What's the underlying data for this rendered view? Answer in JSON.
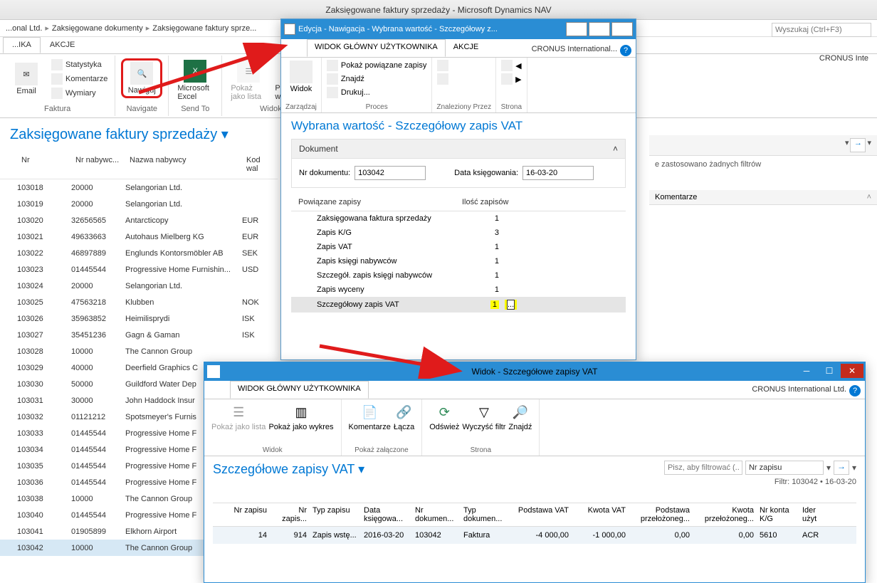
{
  "colors": {
    "accent": "#0078d4",
    "titlebar": "#2a8dd4",
    "highlight": "#ffff00",
    "red": "#e01b1b",
    "closeRed": "#c42b1c"
  },
  "main": {
    "title": "Zaksięgowane faktury sprzedaży - Microsoft Dynamics NAV",
    "breadcrumb": [
      "...onal Ltd.",
      "Zaksięgowane dokumenty",
      "Zaksięgowane faktury sprze..."
    ],
    "searchPlaceholder": "Wyszukaj (Ctrl+F3)",
    "cronus": "CRONUS Inte",
    "ribbonTabs": [
      "...IKA",
      "AKCJE"
    ],
    "ribbon": {
      "faktura": {
        "label": "Faktura",
        "email": "Email",
        "statystyka": "Statystyka",
        "komentarze": "Komentarze",
        "wymiary": "Wymiary"
      },
      "navigate": {
        "label": "Navigate",
        "nawiguj": "Nawiguj"
      },
      "sendto": {
        "label": "Send To",
        "excel": "Microsoft Excel"
      },
      "widok": {
        "label": "Widok",
        "pokazlista": "Pokaż jako lista",
        "pokazwykres": "Pokaż jak wykres"
      }
    },
    "listTitle": "Zaksięgowane faktury sprzedaży ▾",
    "columns": {
      "nr": "Nr",
      "nrNabywcy": "Nr nabywc...",
      "nazwa": "Nazwa nabywcy",
      "kod": "Kod wal"
    },
    "rows": [
      {
        "nr": "103018",
        "cust": "20000",
        "name": "Selangorian Ltd.",
        "cur": ""
      },
      {
        "nr": "103019",
        "cust": "20000",
        "name": "Selangorian Ltd.",
        "cur": ""
      },
      {
        "nr": "103020",
        "cust": "32656565",
        "name": "Antarcticopy",
        "cur": "EUR"
      },
      {
        "nr": "103021",
        "cust": "49633663",
        "name": "Autohaus Mielberg KG",
        "cur": "EUR"
      },
      {
        "nr": "103022",
        "cust": "46897889",
        "name": "Englunds Kontorsmöbler AB",
        "cur": "SEK"
      },
      {
        "nr": "103023",
        "cust": "01445544",
        "name": "Progressive Home Furnishin...",
        "cur": "USD"
      },
      {
        "nr": "103024",
        "cust": "20000",
        "name": "Selangorian Ltd.",
        "cur": ""
      },
      {
        "nr": "103025",
        "cust": "47563218",
        "name": "Klubben",
        "cur": "NOK"
      },
      {
        "nr": "103026",
        "cust": "35963852",
        "name": "Heimilisprydi",
        "cur": "ISK"
      },
      {
        "nr": "103027",
        "cust": "35451236",
        "name": "Gagn & Gaman",
        "cur": "ISK"
      },
      {
        "nr": "103028",
        "cust": "10000",
        "name": "The Cannon Group",
        "cur": ""
      },
      {
        "nr": "103029",
        "cust": "40000",
        "name": "Deerfield Graphics C",
        "cur": ""
      },
      {
        "nr": "103030",
        "cust": "50000",
        "name": "Guildford Water Dep",
        "cur": ""
      },
      {
        "nr": "103031",
        "cust": "30000",
        "name": "John Haddock Insur",
        "cur": ""
      },
      {
        "nr": "103032",
        "cust": "01121212",
        "name": "Spotsmeyer's Furnis",
        "cur": ""
      },
      {
        "nr": "103033",
        "cust": "01445544",
        "name": "Progressive Home F",
        "cur": ""
      },
      {
        "nr": "103034",
        "cust": "01445544",
        "name": "Progressive Home F",
        "cur": ""
      },
      {
        "nr": "103035",
        "cust": "01445544",
        "name": "Progressive Home F",
        "cur": ""
      },
      {
        "nr": "103036",
        "cust": "01445544",
        "name": "Progressive Home F",
        "cur": ""
      },
      {
        "nr": "103038",
        "cust": "10000",
        "name": "The Cannon Group",
        "cur": ""
      },
      {
        "nr": "103040",
        "cust": "01445544",
        "name": "Progressive Home F",
        "cur": ""
      },
      {
        "nr": "103041",
        "cust": "01905899",
        "name": "Elkhorn Airport",
        "cur": ""
      },
      {
        "nr": "103042",
        "cust": "10000",
        "name": "The Cannon Group",
        "cur": ""
      }
    ],
    "rightFilterInfo": "e zastosowano żadnych filtrów",
    "komentarzeHdr": "Komentarze"
  },
  "navdlg": {
    "title": "Edycja - Nawigacja - Wybrana wartość - Szczegółowy z...",
    "tabs": [
      "WIDOK GŁÓWNY UŻYTKOWNIKA",
      "AKCJE"
    ],
    "cronus": "CRONUS International...",
    "ribbon": {
      "zarzadzaj": {
        "label": "Zarządzaj",
        "widok": "Widok"
      },
      "proces": {
        "label": "Proces",
        "pokazPowiazane": "Pokaż powiązane zapisy",
        "znajdz": "Znajdź",
        "drukuj": "Drukuj..."
      },
      "znaleziony": {
        "label": "Znaleziony Przez"
      },
      "strona": {
        "label": "Strona"
      }
    },
    "heading": "Wybrana wartość - Szczegółowy zapis VAT",
    "fastTab": "Dokument",
    "fields": {
      "nrDok": "Nr dokumentu:",
      "nrDokVal": "103042",
      "dataKs": "Data księgowania:",
      "dataKsVal": "16-03-20"
    },
    "relatedHdr": {
      "name": "Powiązane zapisy",
      "count": "Ilość zapisów"
    },
    "related": [
      {
        "name": "Zaksięgowana faktura sprzedaży",
        "count": "1"
      },
      {
        "name": "Zapis K/G",
        "count": "3"
      },
      {
        "name": "Zapis VAT",
        "count": "1"
      },
      {
        "name": "Zapis księgi nabywców",
        "count": "1"
      },
      {
        "name": "Szczegół. zapis księgi nabywców",
        "count": "1"
      },
      {
        "name": "Zapis wyceny",
        "count": "1"
      },
      {
        "name": "Szczegółowy zapis VAT",
        "count": "1"
      }
    ]
  },
  "vat": {
    "title": "Widok - Szczegółowe zapisy VAT",
    "tab": "WIDOK GŁÓWNY UŻYTKOWNIKA",
    "cronus": "CRONUS International Ltd.",
    "ribbon": {
      "widok": {
        "label": "Widok",
        "pokazLista": "Pokaż jako lista",
        "pokazWykres": "Pokaż jako wykres"
      },
      "zalaczone": {
        "label": "Pokaż załączone",
        "komentarze": "Komentarze",
        "lacza": "Łącza"
      },
      "strona": {
        "label": "Strona",
        "odswiez": "Odśwież",
        "wyczysc": "Wyczyść filtr",
        "znajdz": "Znajdź"
      }
    },
    "heading": "Szczegółowe zapisy VAT ▾",
    "filterPlaceholder": "Pisz, aby filtrować (...",
    "filterField": "Nr zapisu",
    "filterInfo": "Filtr: 103042 • 16-03-20",
    "columns": [
      "Nr zapisu",
      "Nr zapis...",
      "Typ zapisu",
      "Data księgowa...",
      "Nr dokumen...",
      "Typ dokumen...",
      "Podstawa VAT",
      "Kwota VAT",
      "Podstawa przełożoneg...",
      "Kwota przełożoneg...",
      "Nr konta K/G",
      "Ider użyt"
    ],
    "row": [
      "14",
      "914",
      "Zapis wstę...",
      "2016-03-20",
      "103042",
      "Faktura",
      "-4 000,00",
      "-1 000,00",
      "0,00",
      "0,00",
      "5610",
      "ACR"
    ]
  }
}
